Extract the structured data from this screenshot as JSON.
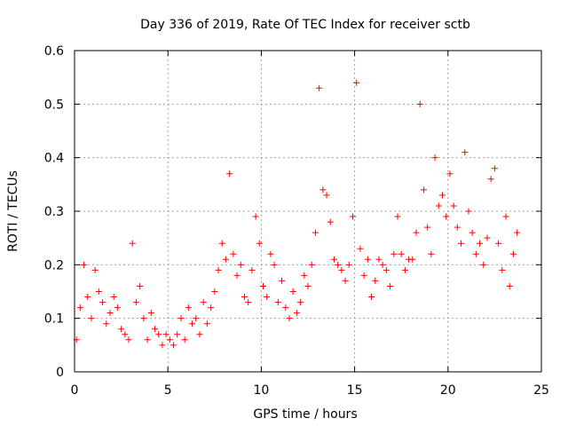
{
  "chart_data": {
    "type": "scatter",
    "title": "Day 336 of 2019, Rate Of TEC Index for receiver sctb",
    "xlabel": "GPS time / hours",
    "ylabel": "ROTI / TECUs",
    "xlim": [
      0,
      25
    ],
    "ylim": [
      0,
      0.6
    ],
    "xticks": [
      0,
      5,
      10,
      15,
      20,
      25
    ],
    "xtick_labels": [
      "0",
      "5",
      "10",
      "15",
      "20",
      "25"
    ],
    "yticks": [
      0,
      0.1,
      0.2,
      0.3,
      0.4,
      0.5,
      0.6
    ],
    "ytick_labels": [
      "0",
      "0.1",
      "0.2",
      "0.3",
      "0.4",
      "0.5",
      "0.6"
    ],
    "grid": true,
    "marker": "plus",
    "color": "#ff0000",
    "series": [
      {
        "x": [
          0.1,
          0.3,
          0.5,
          0.7,
          0.9,
          1.1,
          1.3,
          1.5,
          1.7,
          1.9,
          2.1,
          2.3,
          2.5,
          2.7,
          2.9,
          3.1,
          3.3,
          3.5,
          3.7,
          3.9,
          4.1,
          4.3,
          4.5,
          4.7,
          4.9,
          5.1,
          5.3,
          5.5,
          5.7,
          5.9,
          6.1,
          6.3,
          6.5,
          6.7,
          6.9,
          7.1,
          7.3,
          7.5,
          7.7,
          7.9,
          8.1,
          8.3,
          8.5,
          8.7,
          8.9,
          9.1,
          9.3,
          9.5,
          9.7,
          9.9,
          10.1,
          10.3,
          10.5,
          10.7,
          10.9,
          11.1,
          11.3,
          11.5,
          11.7,
          11.9,
          12.1,
          12.3,
          12.5,
          12.7,
          12.9,
          13.1,
          13.3,
          13.5,
          13.7,
          13.9,
          14.1,
          14.3,
          14.5,
          14.7,
          14.9,
          15.1,
          15.3,
          15.5,
          15.7,
          15.9,
          16.1,
          16.3,
          16.5,
          16.7,
          16.9,
          17.1,
          17.3,
          17.5,
          17.7,
          17.9,
          18.1,
          18.3,
          18.5,
          18.7,
          18.9,
          19.1,
          19.3,
          19.5,
          19.7,
          19.9,
          20.1,
          20.3,
          20.5,
          20.7,
          20.9,
          21.1,
          21.3,
          21.5,
          21.7,
          21.9,
          22.1,
          22.3,
          22.5,
          22.7,
          22.9,
          23.1,
          23.3,
          23.5,
          23.7
        ],
        "y": [
          0.06,
          0.12,
          0.2,
          0.14,
          0.1,
          0.19,
          0.15,
          0.13,
          0.09,
          0.11,
          0.14,
          0.12,
          0.08,
          0.07,
          0.06,
          0.24,
          0.13,
          0.16,
          0.1,
          0.06,
          0.11,
          0.08,
          0.07,
          0.05,
          0.07,
          0.06,
          0.05,
          0.07,
          0.1,
          0.06,
          0.12,
          0.09,
          0.1,
          0.07,
          0.13,
          0.09,
          0.12,
          0.15,
          0.19,
          0.24,
          0.21,
          0.37,
          0.22,
          0.18,
          0.2,
          0.14,
          0.13,
          0.19,
          0.29,
          0.24,
          0.16,
          0.14,
          0.22,
          0.2,
          0.13,
          0.17,
          0.12,
          0.1,
          0.15,
          0.11,
          0.13,
          0.18,
          0.16,
          0.2,
          0.26,
          0.53,
          0.34,
          0.33,
          0.28,
          0.21,
          0.2,
          0.19,
          0.17,
          0.2,
          0.29,
          0.54,
          0.23,
          0.18,
          0.21,
          0.14,
          0.17,
          0.21,
          0.2,
          0.19,
          0.16,
          0.22,
          0.29,
          0.22,
          0.19,
          0.21,
          0.21,
          0.26,
          0.5,
          0.34,
          0.27,
          0.22,
          0.4,
          0.31,
          0.33,
          0.29,
          0.37,
          0.31,
          0.27,
          0.24,
          0.41,
          0.3,
          0.26,
          0.22,
          0.24,
          0.2,
          0.25,
          0.36,
          0.38,
          0.24,
          0.19,
          0.29,
          0.16,
          0.22,
          0.26
        ]
      }
    ]
  }
}
